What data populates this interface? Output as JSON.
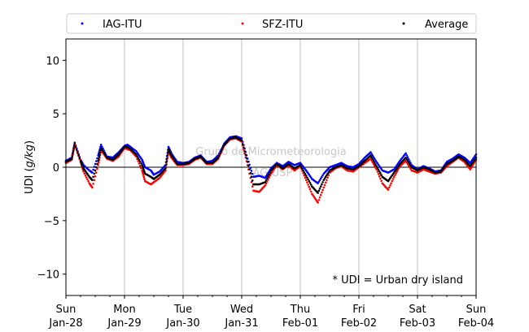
{
  "chart_data": {
    "type": "scatter",
    "ylabel_main": "UDI (",
    "ylabel_var": "g/kg",
    "ylabel_end": ")",
    "ylim": [
      -12,
      12
    ],
    "yticks": [
      -10,
      -5,
      0,
      5,
      10
    ],
    "xlim": [
      0,
      7
    ],
    "grid": "vertical",
    "legend_position": "top",
    "xtick_labels": [
      {
        "day": "Sun",
        "date": "Jan-28"
      },
      {
        "day": "Mon",
        "date": "Jan-29"
      },
      {
        "day": "Tue",
        "date": "Jan-30"
      },
      {
        "day": "Wed",
        "date": "Jan-31"
      },
      {
        "day": "Thu",
        "date": "Feb-01"
      },
      {
        "day": "Fri",
        "date": "Feb-02"
      },
      {
        "day": "Sat",
        "date": "Feb-03"
      },
      {
        "day": "Sun",
        "date": "Feb-04"
      }
    ],
    "annotation": "* UDI = Urban dry island",
    "watermark_line1": "Grupo de Micrometeorologia",
    "watermark_line2": "IAG/USP",
    "series": [
      {
        "name": "IAG-ITU",
        "color": "#0000ff",
        "x": [
          0,
          0.1,
          0.15,
          0.25,
          0.3,
          0.4,
          0.45,
          0.55,
          0.6,
          0.7,
          0.8,
          0.9,
          1,
          1.05,
          1.1,
          1.2,
          1.3,
          1.35,
          1.45,
          1.5,
          1.6,
          1.7,
          1.75,
          1.8,
          1.9,
          2,
          2.1,
          2.2,
          2.3,
          2.4,
          2.5,
          2.6,
          2.7,
          2.8,
          2.9,
          3,
          3.1,
          3.2,
          3.3,
          3.4,
          3.5,
          3.6,
          3.7,
          3.8,
          3.9,
          4,
          4.1,
          4.2,
          4.3,
          4.4,
          4.5,
          4.6,
          4.7,
          4.8,
          4.9,
          5,
          5.1,
          5.2,
          5.3,
          5.4,
          5.5,
          5.6,
          5.7,
          5.8,
          5.9,
          6,
          6.1,
          6.2,
          6.3,
          6.4,
          6.5,
          6.6,
          6.7,
          6.8,
          6.9,
          7
        ],
        "y": [
          0.6,
          0.9,
          2.3,
          0.7,
          0.2,
          -0.3,
          -0.5,
          1.1,
          2.1,
          1.0,
          0.9,
          1.4,
          2.0,
          2.1,
          1.9,
          1.5,
          0.7,
          0.0,
          -0.3,
          -0.7,
          -0.4,
          0.2,
          1.9,
          1.3,
          0.5,
          0.4,
          0.5,
          0.9,
          1.1,
          0.5,
          0.6,
          1.1,
          2.2,
          2.8,
          2.9,
          2.7,
          0.8,
          -0.9,
          -0.8,
          -1.0,
          -0.1,
          0.4,
          0.1,
          0.5,
          0.2,
          0.4,
          -0.3,
          -1.1,
          -1.5,
          -0.6,
          0.0,
          0.2,
          0.4,
          0.1,
          0.0,
          0.3,
          0.9,
          1.4,
          0.5,
          -0.3,
          -0.5,
          -0.2,
          0.6,
          1.3,
          0.2,
          -0.2,
          0.1,
          -0.1,
          -0.4,
          -0.3,
          0.5,
          0.8,
          1.2,
          0.9,
          0.4,
          1.2
        ]
      },
      {
        "name": "SFZ-ITU",
        "color": "#ff0000",
        "x": [
          0,
          0.1,
          0.15,
          0.25,
          0.3,
          0.4,
          0.45,
          0.55,
          0.6,
          0.7,
          0.8,
          0.9,
          1,
          1.05,
          1.1,
          1.2,
          1.3,
          1.35,
          1.45,
          1.5,
          1.6,
          1.7,
          1.75,
          1.8,
          1.9,
          2,
          2.1,
          2.2,
          2.3,
          2.4,
          2.5,
          2.6,
          2.7,
          2.8,
          2.9,
          3,
          3.1,
          3.2,
          3.3,
          3.4,
          3.5,
          3.6,
          3.7,
          3.8,
          3.9,
          4,
          4.1,
          4.2,
          4.3,
          4.4,
          4.5,
          4.6,
          4.7,
          4.8,
          4.9,
          5,
          5.1,
          5.2,
          5.3,
          5.4,
          5.5,
          5.6,
          5.7,
          5.8,
          5.9,
          6,
          6.1,
          6.2,
          6.3,
          6.4,
          6.5,
          6.6,
          6.7,
          6.8,
          6.9,
          7
        ],
        "y": [
          0.4,
          0.7,
          2.1,
          0.5,
          -0.4,
          -1.5,
          -1.9,
          0.2,
          1.6,
          0.8,
          0.6,
          1.0,
          1.8,
          1.7,
          1.6,
          1.0,
          -0.3,
          -1.3,
          -1.6,
          -1.4,
          -1.0,
          -0.3,
          1.5,
          0.9,
          0.2,
          0.2,
          0.3,
          0.7,
          0.9,
          0.3,
          0.3,
          0.8,
          2.0,
          2.6,
          2.7,
          2.4,
          0.2,
          -2.2,
          -2.3,
          -1.7,
          -0.6,
          0.2,
          -0.2,
          0.2,
          -0.3,
          0.1,
          -1.2,
          -2.5,
          -3.3,
          -1.9,
          -0.5,
          -0.1,
          0.1,
          -0.3,
          -0.4,
          0.0,
          0.4,
          0.8,
          -0.2,
          -1.5,
          -2.1,
          -0.9,
          0.1,
          0.6,
          -0.3,
          -0.5,
          -0.2,
          -0.4,
          -0.6,
          -0.5,
          0.1,
          0.5,
          0.9,
          0.5,
          -0.2,
          0.7
        ]
      },
      {
        "name": "Average",
        "color": "#000000",
        "x": [
          0,
          0.1,
          0.15,
          0.25,
          0.3,
          0.4,
          0.45,
          0.55,
          0.6,
          0.7,
          0.8,
          0.9,
          1,
          1.05,
          1.1,
          1.2,
          1.3,
          1.35,
          1.45,
          1.5,
          1.6,
          1.7,
          1.75,
          1.8,
          1.9,
          2,
          2.1,
          2.2,
          2.3,
          2.4,
          2.5,
          2.6,
          2.7,
          2.8,
          2.9,
          3,
          3.1,
          3.2,
          3.3,
          3.4,
          3.5,
          3.6,
          3.7,
          3.8,
          3.9,
          4,
          4.1,
          4.2,
          4.3,
          4.4,
          4.5,
          4.6,
          4.7,
          4.8,
          4.9,
          5,
          5.1,
          5.2,
          5.3,
          5.4,
          5.5,
          5.6,
          5.7,
          5.8,
          5.9,
          6,
          6.1,
          6.2,
          6.3,
          6.4,
          6.5,
          6.6,
          6.7,
          6.8,
          6.9,
          7
        ],
        "y": [
          0.5,
          0.8,
          2.2,
          0.6,
          -0.1,
          -0.9,
          -1.2,
          0.6,
          1.8,
          0.9,
          0.7,
          1.2,
          1.9,
          1.9,
          1.7,
          1.2,
          0.2,
          -0.6,
          -0.9,
          -1.1,
          -0.7,
          -0.1,
          1.7,
          1.1,
          0.3,
          0.3,
          0.4,
          0.8,
          1.0,
          0.4,
          0.4,
          0.9,
          2.1,
          2.7,
          2.8,
          2.5,
          0.5,
          -1.6,
          -1.6,
          -1.4,
          -0.3,
          0.3,
          -0.1,
          0.3,
          -0.1,
          0.2,
          -0.8,
          -1.8,
          -2.4,
          -1.2,
          -0.3,
          0.0,
          0.2,
          -0.1,
          -0.2,
          0.1,
          0.6,
          1.1,
          0.1,
          -0.9,
          -1.3,
          -0.5,
          0.3,
          0.9,
          0.0,
          -0.3,
          0.0,
          -0.2,
          -0.5,
          -0.4,
          0.3,
          0.6,
          1.0,
          0.7,
          0.1,
          0.9
        ]
      }
    ]
  }
}
